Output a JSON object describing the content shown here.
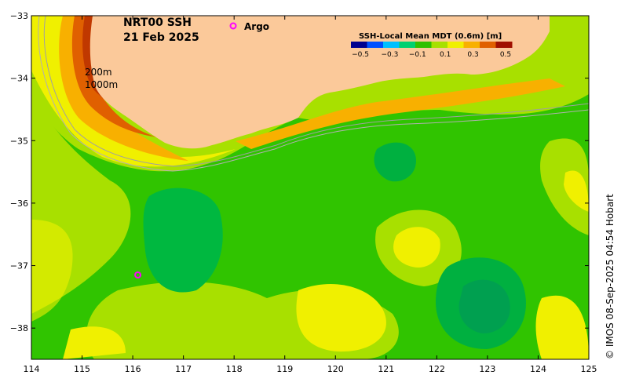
{
  "title": {
    "product": "NRT00 SSH",
    "date": "21 Feb 2025"
  },
  "legend": {
    "title": "SSH-Local Mean MDT (0.6m) [m]",
    "ticks": [
      "−0.5",
      "−0.3",
      "−0.1",
      "0.1",
      "0.3",
      "0.5"
    ],
    "colors": [
      "#00008f",
      "#0050ff",
      "#00c0ff",
      "#00d070",
      "#30c000",
      "#a8e000",
      "#f0f000",
      "#f8b000",
      "#e06000",
      "#a01000"
    ]
  },
  "argo_legend": {
    "label": "Argo",
    "color": "#ff00ff"
  },
  "contours": {
    "shallow": "200m",
    "deep": "1000m"
  },
  "credit": "© IMOS 08-Sep-2025 04:54 Hobart",
  "x_ticks": [
    "114",
    "115",
    "116",
    "117",
    "118",
    "119",
    "120",
    "121",
    "122",
    "123",
    "124",
    "125"
  ],
  "y_ticks": [
    "−33",
    "−34",
    "−35",
    "−36",
    "−37",
    "−38"
  ],
  "map_extent": {
    "lon": [
      114,
      125
    ],
    "lat": [
      -38.5,
      -33
    ]
  },
  "land_color": "#fbc99a",
  "argo_float": {
    "lon": 116.1,
    "lat": -37.15
  }
}
